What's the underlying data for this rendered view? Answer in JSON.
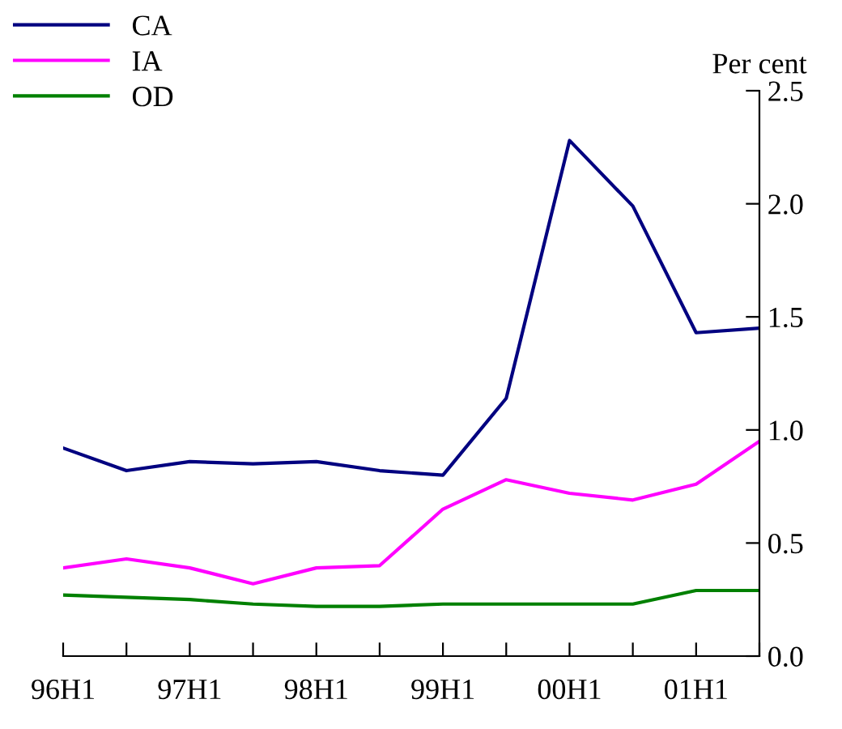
{
  "chart_data": {
    "type": "line",
    "ylabel": "Per cent",
    "categories": [
      "96H1",
      null,
      "97H1",
      null,
      "98H1",
      null,
      "99H1",
      null,
      "00H1",
      null,
      "01H1",
      null
    ],
    "series": [
      {
        "name": "CA",
        "color": "#000080",
        "values": [
          0.92,
          0.82,
          0.86,
          0.85,
          0.86,
          0.82,
          0.8,
          1.14,
          2.28,
          1.99,
          1.43,
          1.45
        ]
      },
      {
        "name": "IA",
        "color": "#ff00ff",
        "values": [
          0.39,
          0.43,
          0.39,
          0.32,
          0.39,
          0.4,
          0.65,
          0.78,
          0.72,
          0.69,
          0.76,
          0.95
        ]
      },
      {
        "name": "OD",
        "color": "#008000",
        "values": [
          0.27,
          0.26,
          0.25,
          0.23,
          0.22,
          0.22,
          0.23,
          0.23,
          0.23,
          0.23,
          0.29,
          0.29
        ]
      }
    ],
    "ylim": [
      0,
      2.5
    ],
    "yticks": [
      {
        "value": 0,
        "label": "0.0"
      },
      {
        "value": 0.5,
        "label": "0.5"
      },
      {
        "value": 1,
        "label": "1.0"
      },
      {
        "value": 1.5,
        "label": "1.5"
      },
      {
        "value": 2,
        "label": "2.0"
      },
      {
        "value": 2.5,
        "label": "2.5"
      }
    ],
    "grid": false,
    "legend": "top left",
    "marker": "none",
    "line_style": "solid"
  }
}
